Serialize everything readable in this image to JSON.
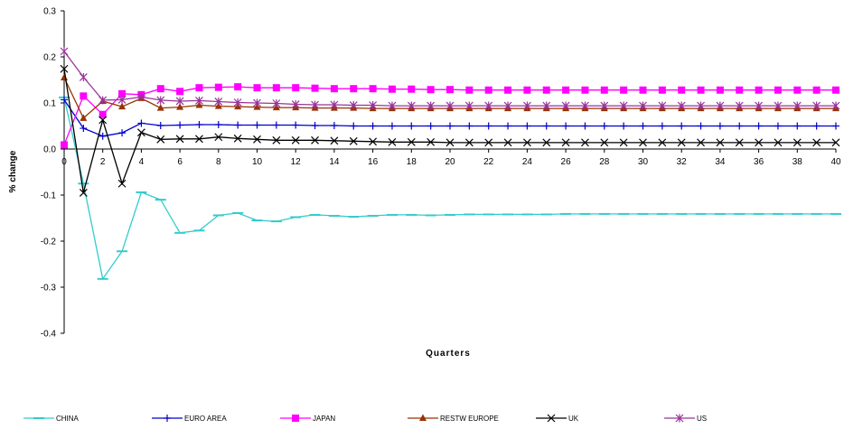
{
  "chart_data": {
    "type": "line",
    "title": "",
    "xlabel": "Quarters",
    "ylabel": "% change",
    "xlim": [
      0,
      40
    ],
    "ylim": [
      -0.4,
      0.3
    ],
    "x_ticks": [
      0,
      2,
      4,
      6,
      8,
      10,
      12,
      14,
      16,
      18,
      20,
      22,
      24,
      26,
      28,
      30,
      32,
      34,
      36,
      38,
      40
    ],
    "y_ticks": [
      -0.4,
      -0.3,
      -0.2,
      -0.1,
      0.0,
      0.1,
      0.2,
      0.3
    ],
    "y_tick_labels": [
      "-0.4",
      "-0.3",
      "-0.2",
      "-0.1",
      "0.0",
      "0.1",
      "0.2",
      "0.3"
    ],
    "grid": false,
    "legend_position": "bottom",
    "x": [
      0,
      1,
      2,
      3,
      4,
      5,
      6,
      7,
      8,
      9,
      10,
      11,
      12,
      13,
      14,
      15,
      16,
      17,
      18,
      19,
      20,
      21,
      22,
      23,
      24,
      25,
      26,
      27,
      28,
      29,
      30,
      31,
      32,
      33,
      34,
      35,
      36,
      37,
      38,
      39,
      40
    ],
    "series": [
      {
        "name": "CHINA",
        "color": "#33CCCC",
        "marker": "dash",
        "values": [
          0.112,
          -0.075,
          -0.282,
          -0.222,
          -0.094,
          -0.11,
          -0.182,
          -0.177,
          -0.144,
          -0.139,
          -0.155,
          -0.157,
          -0.148,
          -0.143,
          -0.145,
          -0.147,
          -0.145,
          -0.143,
          -0.143,
          -0.144,
          -0.143,
          -0.142,
          -0.142,
          -0.142,
          -0.142,
          -0.142,
          -0.141,
          -0.141,
          -0.141,
          -0.141,
          -0.141,
          -0.141,
          -0.141,
          -0.141,
          -0.141,
          -0.141,
          -0.141,
          -0.141,
          -0.141,
          -0.141,
          -0.141
        ]
      },
      {
        "name": "EURO AREA",
        "color": "#0000CC",
        "marker": "plus",
        "values": [
          0.107,
          0.045,
          0.028,
          0.035,
          0.056,
          0.051,
          0.052,
          0.053,
          0.053,
          0.052,
          0.052,
          0.052,
          0.052,
          0.051,
          0.051,
          0.05,
          0.05,
          0.05,
          0.05,
          0.05,
          0.05,
          0.05,
          0.05,
          0.05,
          0.05,
          0.05,
          0.05,
          0.05,
          0.05,
          0.05,
          0.05,
          0.05,
          0.05,
          0.05,
          0.05,
          0.05,
          0.05,
          0.05,
          0.05,
          0.05,
          0.05
        ]
      },
      {
        "name": "JAPAN",
        "color": "#FF00FF",
        "marker": "square",
        "values": [
          0.009,
          0.115,
          0.075,
          0.12,
          0.118,
          0.131,
          0.125,
          0.133,
          0.134,
          0.135,
          0.133,
          0.133,
          0.133,
          0.132,
          0.131,
          0.131,
          0.131,
          0.13,
          0.13,
          0.129,
          0.129,
          0.128,
          0.128,
          0.128,
          0.128,
          0.128,
          0.128,
          0.128,
          0.128,
          0.128,
          0.128,
          0.128,
          0.128,
          0.128,
          0.128,
          0.128,
          0.128,
          0.128,
          0.128,
          0.128,
          0.128
        ]
      },
      {
        "name": "RESTW EUROPE",
        "color": "#993300",
        "marker": "triangle",
        "values": [
          0.155,
          0.067,
          0.104,
          0.092,
          0.11,
          0.089,
          0.091,
          0.095,
          0.093,
          0.092,
          0.091,
          0.09,
          0.09,
          0.089,
          0.089,
          0.089,
          0.088,
          0.088,
          0.088,
          0.088,
          0.088,
          0.088,
          0.088,
          0.088,
          0.088,
          0.088,
          0.088,
          0.088,
          0.088,
          0.088,
          0.088,
          0.088,
          0.088,
          0.088,
          0.088,
          0.088,
          0.088,
          0.088,
          0.088,
          0.088,
          0.088
        ]
      },
      {
        "name": "UK",
        "color": "#000000",
        "marker": "cross",
        "values": [
          0.174,
          -0.095,
          0.063,
          -0.075,
          0.036,
          0.021,
          0.022,
          0.022,
          0.026,
          0.023,
          0.021,
          0.019,
          0.019,
          0.019,
          0.018,
          0.017,
          0.016,
          0.015,
          0.015,
          0.015,
          0.014,
          0.014,
          0.014,
          0.014,
          0.014,
          0.014,
          0.014,
          0.014,
          0.014,
          0.014,
          0.014,
          0.014,
          0.014,
          0.014,
          0.014,
          0.014,
          0.014,
          0.014,
          0.014,
          0.014,
          0.014
        ]
      },
      {
        "name": "US",
        "color": "#993399",
        "marker": "star",
        "values": [
          0.212,
          0.156,
          0.106,
          0.107,
          0.113,
          0.106,
          0.104,
          0.105,
          0.103,
          0.101,
          0.1,
          0.099,
          0.097,
          0.096,
          0.096,
          0.095,
          0.095,
          0.094,
          0.094,
          0.094,
          0.094,
          0.094,
          0.094,
          0.094,
          0.094,
          0.094,
          0.094,
          0.094,
          0.094,
          0.094,
          0.094,
          0.094,
          0.094,
          0.094,
          0.094,
          0.094,
          0.094,
          0.094,
          0.094,
          0.094,
          0.094
        ]
      }
    ]
  }
}
